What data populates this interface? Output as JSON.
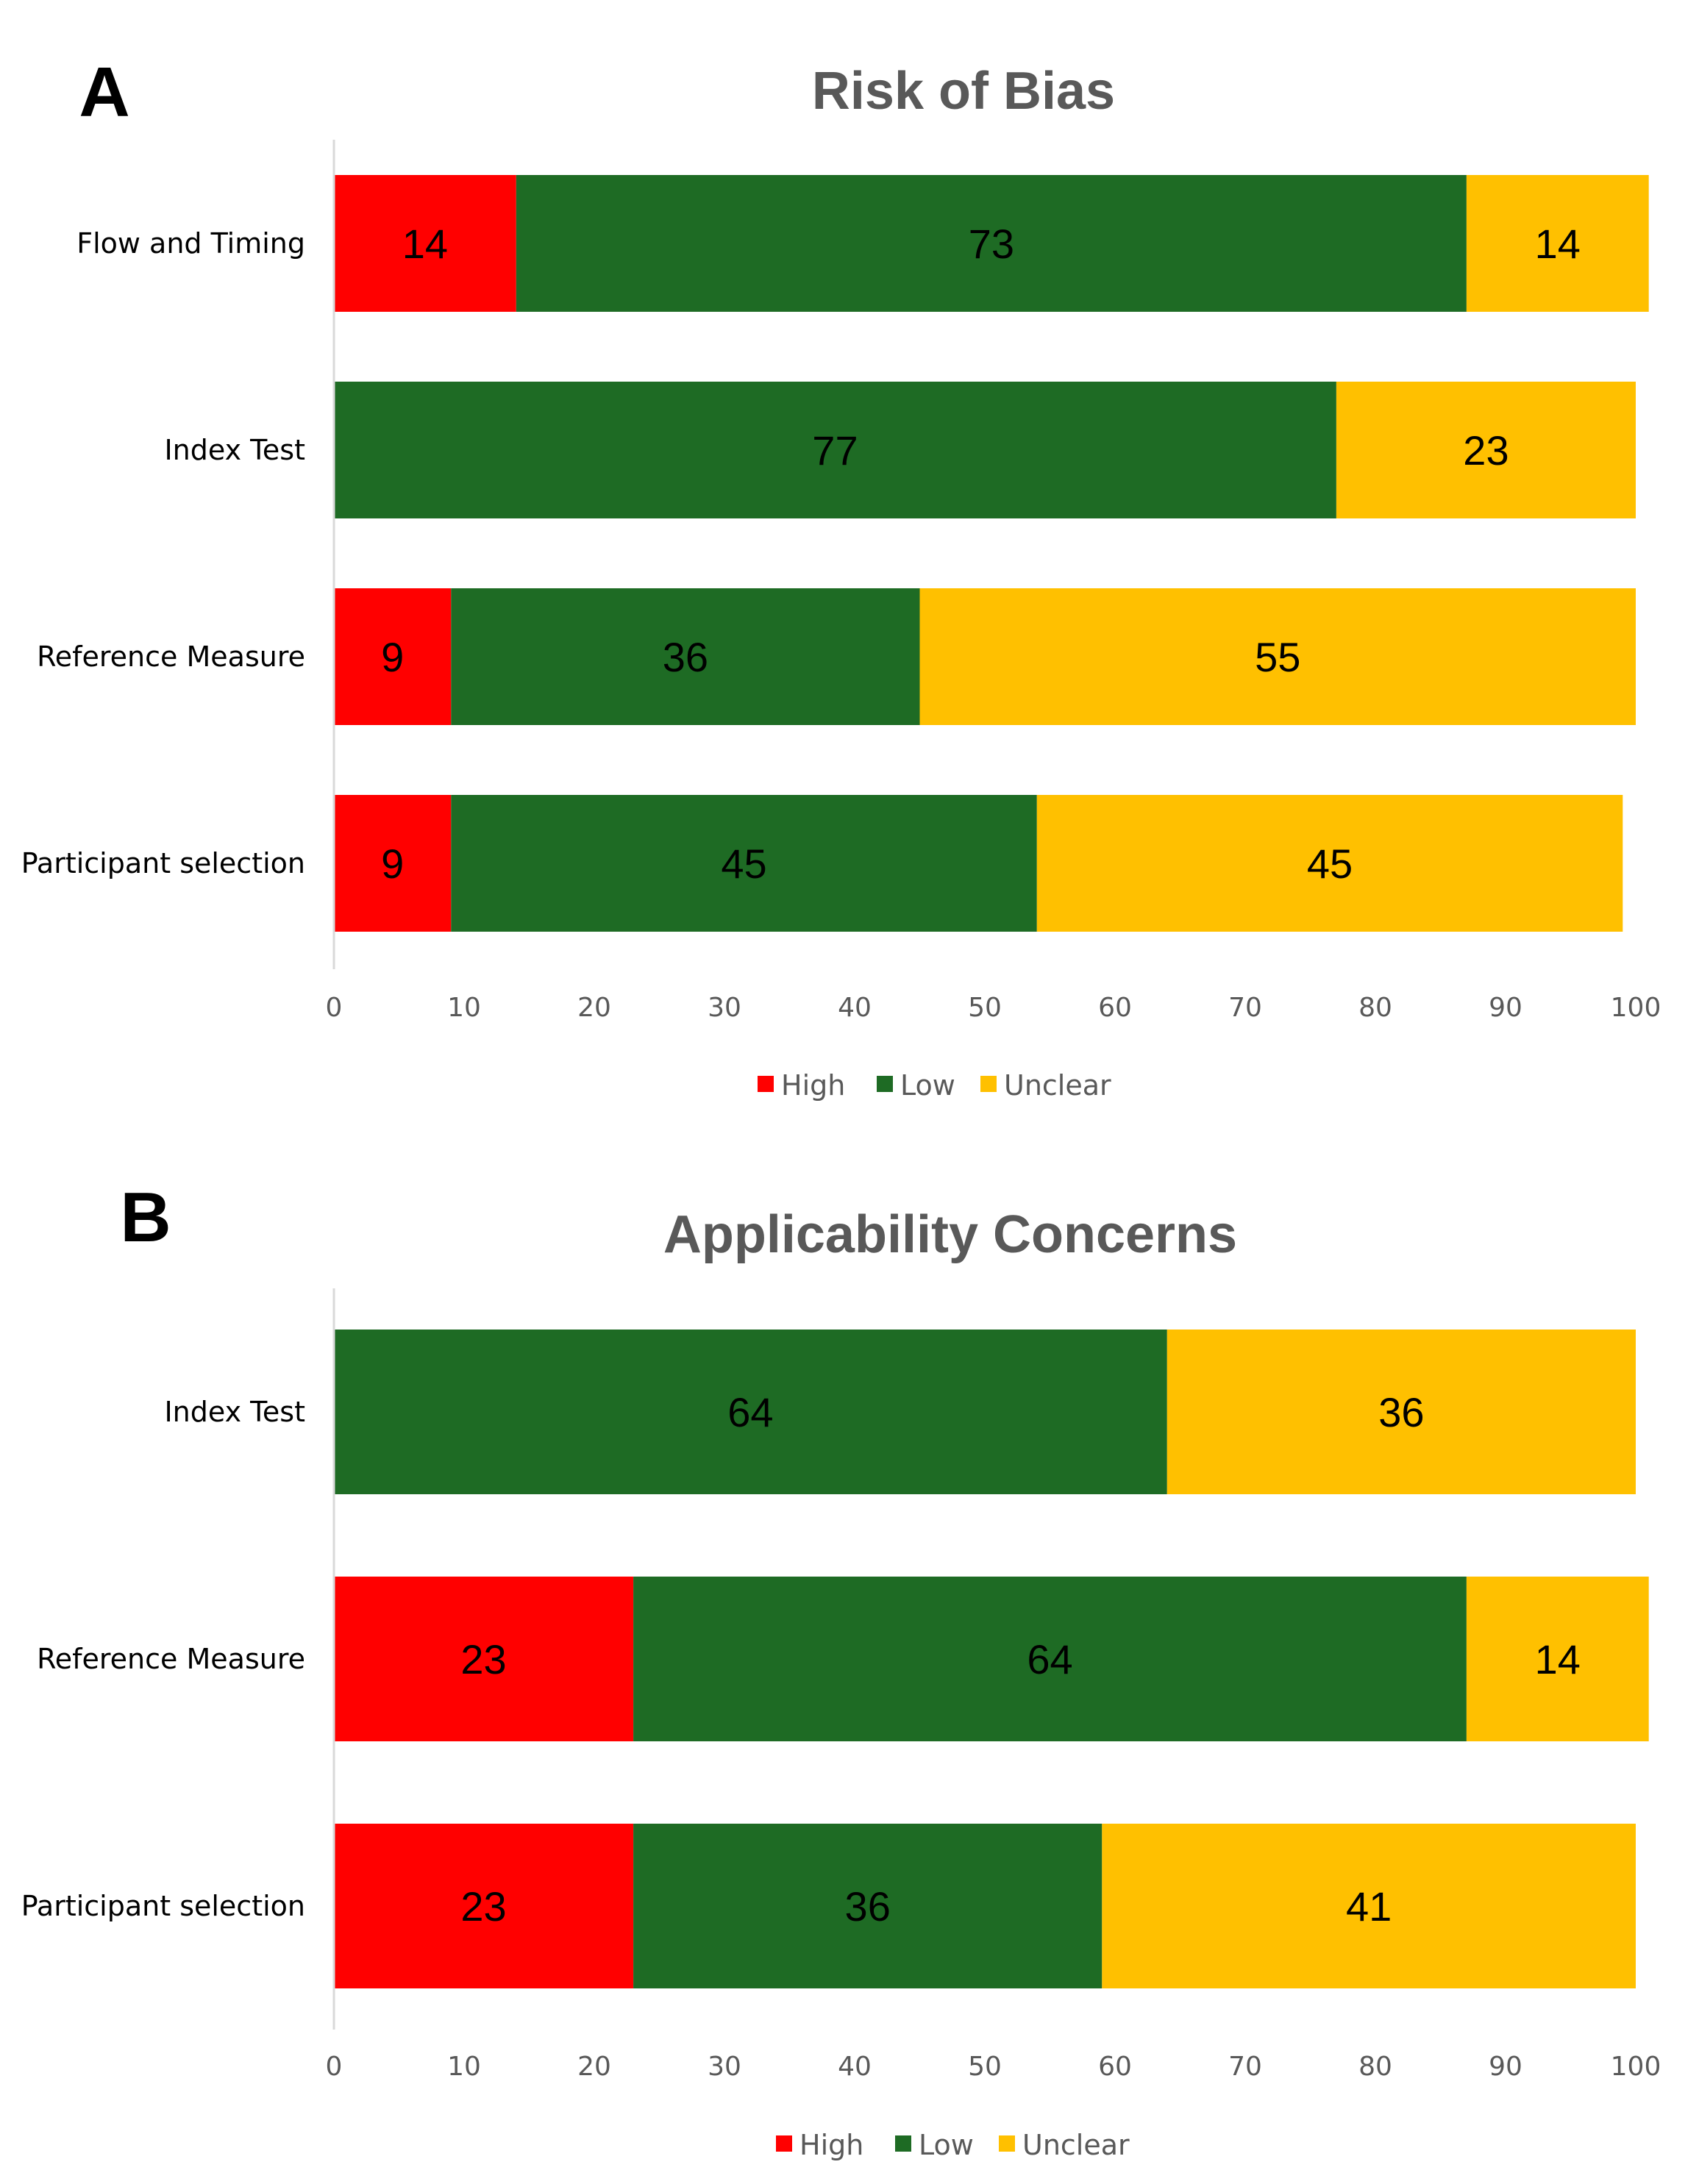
{
  "colors": {
    "High": "#ff0000",
    "Low": "#1e6b24",
    "Unclear": "#ffc000"
  },
  "chart_data": [
    {
      "panel": "A",
      "type": "bar",
      "orientation": "horizontal",
      "stacked": true,
      "title": "Risk of Bias",
      "categories": [
        "Flow and Timing",
        "Index Test",
        "Reference Measure",
        "Participant  selection"
      ],
      "series": [
        {
          "name": "High",
          "values": [
            14,
            0,
            9,
            9
          ],
          "labels": [
            "14",
            "",
            "9",
            "9"
          ]
        },
        {
          "name": "Low",
          "values": [
            73,
            77,
            36,
            45
          ],
          "labels": [
            "73",
            "77",
            "36",
            "45"
          ]
        },
        {
          "name": "Unclear",
          "values": [
            14,
            23,
            55,
            45
          ],
          "labels": [
            "14",
            "23",
            "55",
            "45"
          ]
        }
      ],
      "xlim": [
        0,
        100
      ],
      "ticks": [
        "0",
        "10",
        "20",
        "30",
        "40",
        "50",
        "60",
        "70",
        "80",
        "90",
        "100"
      ],
      "legend": "bottom",
      "grid": false
    },
    {
      "panel": "B",
      "type": "bar",
      "orientation": "horizontal",
      "stacked": true,
      "title": "Applicability Concerns",
      "categories": [
        "Index Test",
        "Reference Measure",
        "Participant  selection"
      ],
      "series": [
        {
          "name": "High",
          "values": [
            0,
            23,
            23
          ],
          "labels": [
            "",
            "23",
            "23"
          ]
        },
        {
          "name": "Low",
          "values": [
            64,
            64,
            36
          ],
          "labels": [
            "64",
            "64",
            "36"
          ]
        },
        {
          "name": "Unclear",
          "values": [
            36,
            14,
            41
          ],
          "labels": [
            "36",
            "14",
            "41"
          ]
        }
      ],
      "xlim": [
        0,
        100
      ],
      "ticks": [
        "0",
        "10",
        "20",
        "30",
        "40",
        "50",
        "60",
        "70",
        "80",
        "90",
        "100"
      ],
      "legend": "bottom",
      "grid": false
    }
  ]
}
